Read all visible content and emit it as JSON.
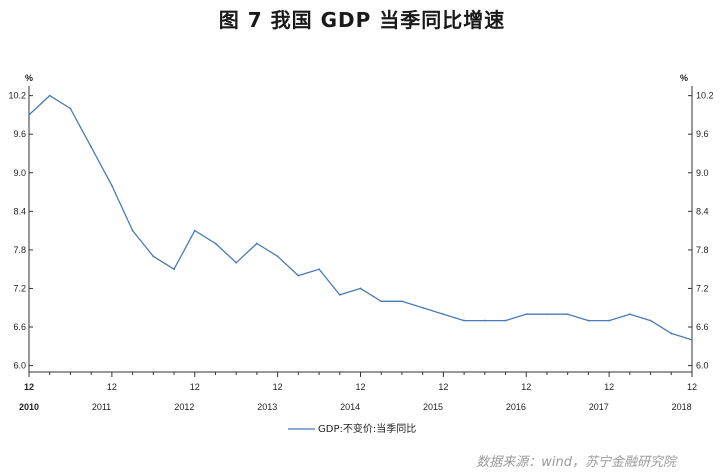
{
  "chart_data": {
    "type": "line",
    "title": "图 7    我国 GDP 当季同比增速",
    "ylabel_left": "%",
    "ylabel_right": "%",
    "ylim": [
      5.9,
      10.35
    ],
    "yticks": [
      "10.2",
      "9.6",
      "9.0",
      "8.4",
      "7.8",
      "7.2",
      "6.6",
      "6.0"
    ],
    "xtick_month": "12",
    "xtick_years": [
      "2010",
      "2011",
      "2012",
      "2013",
      "2014",
      "2015",
      "2016",
      "2017",
      "2018"
    ],
    "legend_placement": "bottom-center",
    "grid": false,
    "color": "#4a7ab8",
    "series": [
      {
        "name": "GDP:不变价:当季同比",
        "x": [
          "2010-12",
          "2011-03",
          "2011-06",
          "2011-09",
          "2011-12",
          "2012-03",
          "2012-06",
          "2012-09",
          "2012-12",
          "2013-03",
          "2013-06",
          "2013-09",
          "2013-12",
          "2014-03",
          "2014-06",
          "2014-09",
          "2014-12",
          "2015-03",
          "2015-06",
          "2015-09",
          "2015-12",
          "2016-03",
          "2016-06",
          "2016-09",
          "2016-12",
          "2017-03",
          "2017-06",
          "2017-09",
          "2017-12",
          "2018-03",
          "2018-06",
          "2018-09",
          "2018-12"
        ],
        "values": [
          9.9,
          10.2,
          10.0,
          9.4,
          8.8,
          8.1,
          7.7,
          7.5,
          8.1,
          7.9,
          7.6,
          7.9,
          7.7,
          7.4,
          7.5,
          7.1,
          7.2,
          7.0,
          7.0,
          6.9,
          6.8,
          6.7,
          6.7,
          6.7,
          6.8,
          6.8,
          6.8,
          6.7,
          6.7,
          6.8,
          6.7,
          6.5,
          6.4
        ]
      }
    ]
  },
  "source": "数据来源：wind，苏宁金融研究院"
}
